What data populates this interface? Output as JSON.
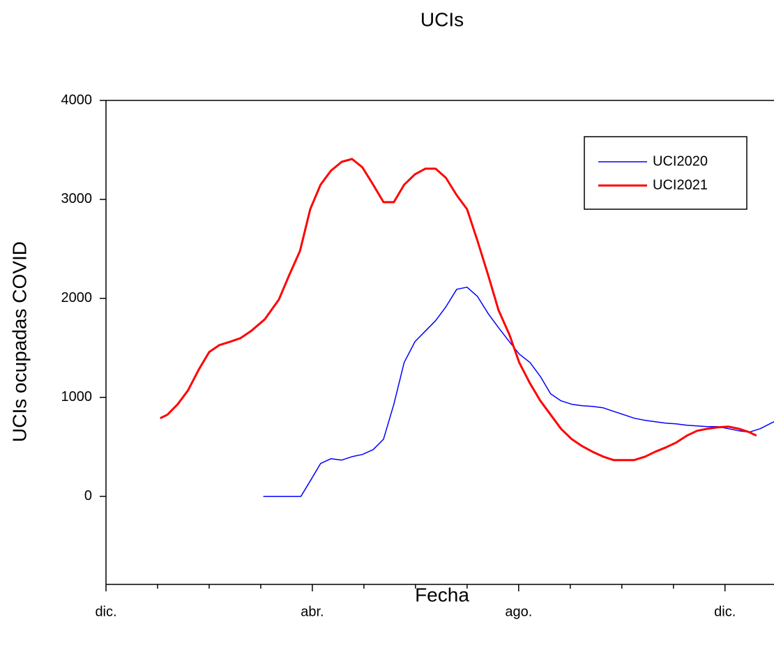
{
  "chart_data": {
    "type": "line",
    "title": "UCIs",
    "xlabel": "Fecha",
    "ylabel": "UCIs ocupadas COVID",
    "xlim": [
      0,
      12.95
    ],
    "ylim": [
      -890,
      4000
    ],
    "xticks": [
      {
        "value": 0,
        "label": "dic."
      },
      {
        "value": 4,
        "label": "abr."
      },
      {
        "value": 8,
        "label": "ago."
      },
      {
        "value": 12,
        "label": "dic."
      }
    ],
    "xminorticks": [
      1,
      2,
      3,
      5,
      6,
      7,
      9,
      10,
      11
    ],
    "yticks": [
      0,
      1000,
      2000,
      3000,
      4000
    ],
    "legend": "upper right",
    "series": [
      {
        "name": "UCI2020",
        "color": "#0000ff",
        "width": 1.5,
        "x": [
          3.05,
          3.78,
          3.96,
          4.16,
          4.36,
          4.57,
          4.77,
          4.97,
          5.18,
          5.38,
          5.58,
          5.78,
          5.99,
          6.19,
          6.39,
          6.59,
          6.8,
          7.0,
          7.2,
          7.41,
          7.61,
          7.82,
          8.01,
          8.22,
          8.42,
          8.62,
          8.82,
          9.03,
          9.23,
          9.43,
          9.64,
          9.84,
          10.04,
          10.24,
          10.45,
          10.65,
          10.85,
          11.05,
          11.26,
          11.46,
          11.66,
          11.86,
          12.07,
          12.27,
          12.47,
          12.68,
          12.95
        ],
        "values": [
          0,
          0,
          155,
          331,
          380,
          366,
          401,
          423,
          472,
          577,
          930,
          1352,
          1563,
          1669,
          1775,
          1915,
          2092,
          2113,
          2021,
          1845,
          1704,
          1563,
          1437,
          1352,
          1211,
          1035,
          965,
          930,
          915,
          908,
          894,
          859,
          824,
          789,
          768,
          754,
          739,
          732,
          718,
          711,
          704,
          704,
          683,
          662,
          648,
          683,
          754
        ]
      },
      {
        "name": "UCI2021",
        "color": "#ff0000",
        "width": 3,
        "x": [
          1.05,
          1.19,
          1.39,
          1.59,
          1.8,
          2.0,
          2.2,
          2.41,
          2.61,
          2.81,
          3.08,
          3.35,
          3.55,
          3.76,
          3.96,
          4.16,
          4.36,
          4.57,
          4.77,
          4.97,
          5.18,
          5.38,
          5.58,
          5.78,
          5.99,
          6.19,
          6.39,
          6.59,
          6.8,
          7.0,
          7.2,
          7.41,
          7.61,
          7.82,
          8.01,
          8.22,
          8.42,
          8.62,
          8.82,
          9.03,
          9.23,
          9.43,
          9.64,
          9.84,
          10.04,
          10.24,
          10.45,
          10.65,
          10.85,
          11.05,
          11.26,
          11.46,
          11.66,
          11.86,
          12.07,
          12.27,
          12.47,
          12.61
        ],
        "values": [
          789,
          824,
          930,
          1070,
          1282,
          1458,
          1528,
          1563,
          1599,
          1669,
          1789,
          1986,
          2232,
          2479,
          2901,
          3148,
          3289,
          3380,
          3408,
          3324,
          3148,
          2972,
          2972,
          3148,
          3254,
          3310,
          3310,
          3218,
          3042,
          2901,
          2585,
          2232,
          1880,
          1634,
          1352,
          1141,
          965,
          824,
          683,
          577,
          507,
          451,
          401,
          366,
          366,
          366,
          401,
          451,
          493,
          542,
          613,
          662,
          683,
          697,
          704,
          683,
          648,
          613
        ]
      }
    ]
  }
}
